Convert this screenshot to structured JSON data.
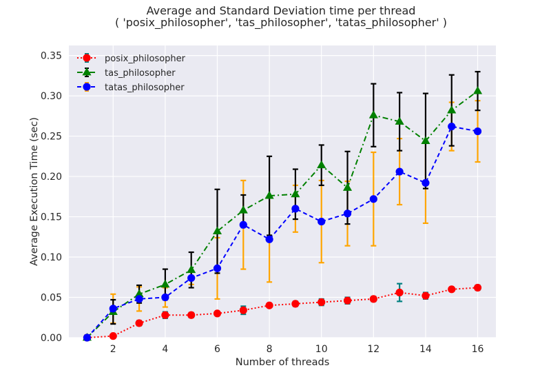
{
  "chart_data": {
    "type": "line",
    "title": [
      "Average and Standard Deviation time per thread",
      "( 'posix_philosopher', 'tas_philosopher', 'tatas_philosopher' )"
    ],
    "xlabel": "Number of threads",
    "ylabel": "Average Execution Time (sec)",
    "xlim": [
      0.3,
      16.7
    ],
    "ylim": [
      0,
      0.3625
    ],
    "xticks": [
      2,
      4,
      6,
      8,
      10,
      12,
      14,
      16
    ],
    "xtick_labels": [
      "2",
      "4",
      "6",
      "8",
      "10",
      "12",
      "14",
      "16"
    ],
    "yticks": [
      0,
      0.05,
      0.1,
      0.15,
      0.2,
      0.25,
      0.3,
      0.35
    ],
    "ytick_labels": [
      "0.00",
      "0.05",
      "0.10",
      "0.15",
      "0.20",
      "0.25",
      "0.30",
      "0.35"
    ],
    "grid": true,
    "legend_position": "top-left",
    "x": [
      1,
      2,
      3,
      4,
      5,
      6,
      7,
      8,
      9,
      10,
      11,
      12,
      13,
      14,
      15,
      16
    ],
    "series": [
      {
        "name": "posix_philosopher",
        "color": "#ff0000",
        "error_color": "#008080",
        "marker": "circle",
        "linestyle": "dotted",
        "values": [
          0.0,
          0.002,
          0.018,
          0.028,
          0.028,
          0.03,
          0.034,
          0.04,
          0.042,
          0.044,
          0.046,
          0.048,
          0.056,
          0.052,
          0.06,
          0.062
        ],
        "errors": [
          0.001,
          0.001,
          0.003,
          0.004,
          0.003,
          0.002,
          0.005,
          0.002,
          0.003,
          0.004,
          0.004,
          0.003,
          0.011,
          0.004,
          0.002,
          0.003
        ]
      },
      {
        "name": "tas_philosopher",
        "color": "#008000",
        "error_color": "#000000",
        "marker": "triangle",
        "linestyle": "dashdot",
        "values": [
          0.0,
          0.032,
          0.054,
          0.066,
          0.084,
          0.132,
          0.158,
          0.176,
          0.178,
          0.214,
          0.186,
          0.276,
          0.268,
          0.244,
          0.282,
          0.306
        ],
        "errors": [
          0.003,
          0.015,
          0.011,
          0.019,
          0.022,
          0.052,
          0.019,
          0.049,
          0.031,
          0.025,
          0.045,
          0.039,
          0.036,
          0.059,
          0.044,
          0.024
        ]
      },
      {
        "name": "tatas_philosopher",
        "color": "#0000ff",
        "error_color": "#ffa500",
        "marker": "circle",
        "linestyle": "dashed",
        "values": [
          0.0,
          0.036,
          0.048,
          0.05,
          0.074,
          0.086,
          0.14,
          0.122,
          0.16,
          0.144,
          0.154,
          0.172,
          0.206,
          0.192,
          0.262,
          0.256
        ],
        "errors": [
          0.001,
          0.018,
          0.015,
          0.012,
          0.008,
          0.038,
          0.055,
          0.053,
          0.029,
          0.051,
          0.04,
          0.058,
          0.041,
          0.05,
          0.03,
          0.038
        ]
      }
    ]
  }
}
